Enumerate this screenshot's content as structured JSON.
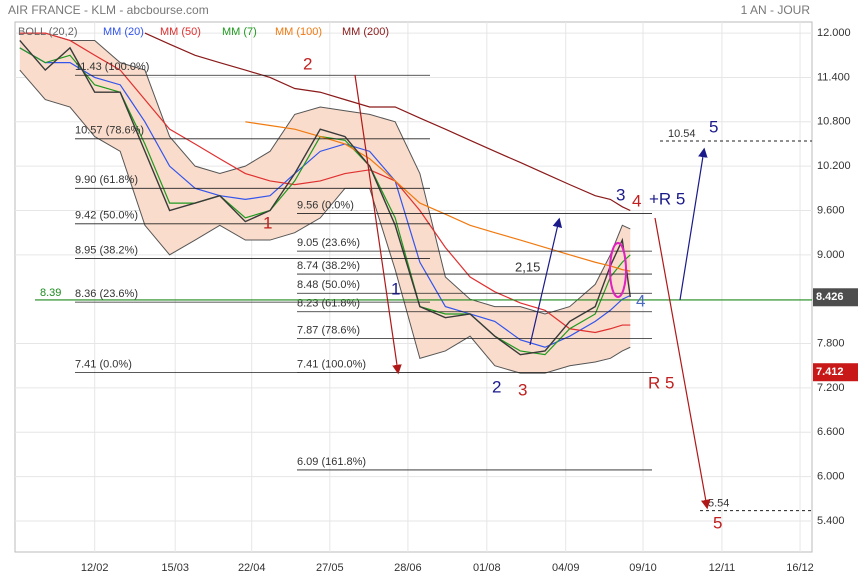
{
  "header": {
    "title": "AIR FRANCE - KLM - abcbourse.com",
    "period": "1 AN - JOUR"
  },
  "chart_data": {
    "type": "line",
    "xlim": [
      0,
      100
    ],
    "xticks": [
      {
        "value": 10.0,
        "label": "12/02"
      },
      {
        "value": 20.1,
        "label": "15/03"
      },
      {
        "value": 29.7,
        "label": "22/04"
      },
      {
        "value": 39.5,
        "label": "27/05"
      },
      {
        "value": 49.3,
        "label": "28/06"
      },
      {
        "value": 59.2,
        "label": "01/08"
      },
      {
        "value": 69.1,
        "label": "04/09"
      },
      {
        "value": 78.8,
        "label": "09/10"
      },
      {
        "value": 88.7,
        "label": "12/11"
      },
      {
        "value": 98.5,
        "label": "16/12"
      }
    ],
    "ylim": [
      4.98,
      12.15
    ],
    "yticks": [
      {
        "value": 12,
        "label": "12.000"
      },
      {
        "value": 11.4,
        "label": "11.400"
      },
      {
        "value": 10.8,
        "label": "10.800"
      },
      {
        "value": 10.2,
        "label": "10.200"
      },
      {
        "value": 9.6,
        "label": "9.600"
      },
      {
        "value": 9,
        "label": "9.000"
      },
      {
        "value": 7.8,
        "label": "7.800"
      },
      {
        "value": 7.2,
        "label": "7.200"
      },
      {
        "value": 6.6,
        "label": "6.600"
      },
      {
        "value": 6,
        "label": "6.000"
      },
      {
        "value": 5.4,
        "label": "5.400"
      }
    ],
    "grid": true,
    "x": [
      0.6,
      3.8,
      6.9,
      10.0,
      13.2,
      16.3,
      19.4,
      22.6,
      25.7,
      28.9,
      32.0,
      35.1,
      38.3,
      41.4,
      44.5,
      47.7,
      50.8,
      54.0,
      57.1,
      60.2,
      63.4,
      66.5,
      69.6,
      72.8,
      74.7,
      76.2,
      77.2
    ],
    "price": {
      "color": "#3a3a3a",
      "values": [
        11.9,
        11.5,
        11.8,
        11.2,
        11.2,
        10.4,
        9.6,
        9.7,
        9.8,
        9.45,
        9.6,
        10.1,
        10.7,
        10.6,
        10.2,
        9.4,
        8.3,
        8.15,
        8.2,
        7.9,
        7.65,
        7.7,
        8.1,
        8.3,
        8.85,
        9.2,
        8.43
      ]
    },
    "bollinger": {
      "name": "BOLL (20,2)",
      "color": "#555555",
      "fill": "#f9dccb",
      "upper": [
        12.0,
        12.0,
        11.9,
        11.9,
        11.6,
        11.5,
        10.6,
        10.2,
        10.1,
        10.2,
        10.4,
        10.9,
        11.0,
        10.95,
        10.9,
        10.8,
        10.1,
        8.7,
        8.4,
        8.3,
        8.3,
        8.2,
        8.3,
        8.6,
        9.0,
        9.4,
        9.35
      ],
      "lower": [
        11.5,
        11.1,
        11.0,
        10.6,
        10.4,
        9.4,
        9.0,
        9.2,
        9.4,
        9.2,
        9.2,
        9.3,
        9.5,
        9.9,
        9.9,
        8.8,
        7.6,
        7.7,
        7.9,
        7.5,
        7.4,
        7.4,
        7.5,
        7.55,
        7.6,
        7.7,
        7.75
      ]
    },
    "series": [
      {
        "name": "MM (20)",
        "color": "#3355ee",
        "values": [
          11.8,
          11.6,
          11.6,
          11.4,
          11.3,
          10.8,
          10.2,
          9.9,
          9.8,
          9.75,
          9.8,
          10.1,
          10.4,
          10.5,
          10.4,
          10.0,
          8.9,
          8.3,
          8.2,
          8.1,
          7.85,
          7.75,
          7.9,
          8.1,
          8.25,
          8.4,
          8.45
        ]
      },
      {
        "name": "MM (50)",
        "color": "#e03030",
        "values": [
          12.0,
          12.0,
          11.9,
          11.7,
          11.5,
          11.1,
          10.7,
          10.5,
          10.3,
          10.1,
          10.0,
          9.95,
          10.0,
          10.1,
          10.15,
          10.0,
          9.6,
          9.1,
          8.7,
          8.5,
          8.35,
          8.25,
          8.0,
          7.95,
          8.0,
          8.05,
          8.05
        ]
      },
      {
        "name": "MM (7)",
        "color": "#1f9a1f",
        "values": [
          11.8,
          11.6,
          11.7,
          11.3,
          11.2,
          10.5,
          9.7,
          9.7,
          9.8,
          9.5,
          9.6,
          10.0,
          10.6,
          10.55,
          10.2,
          9.5,
          8.3,
          8.2,
          8.2,
          7.9,
          7.7,
          7.65,
          8.0,
          8.2,
          8.7,
          8.9,
          9.0
        ]
      },
      {
        "name": "MM (100)",
        "color": "#f07a10",
        "values": [
          null,
          null,
          null,
          null,
          null,
          null,
          null,
          null,
          null,
          10.8,
          10.75,
          10.7,
          10.6,
          10.5,
          10.3,
          10.0,
          9.7,
          9.55,
          9.4,
          9.3,
          9.2,
          9.1,
          9.0,
          8.9,
          8.85,
          8.8,
          8.78
        ]
      },
      {
        "name": "MM (200)",
        "color": "#8b1a1a",
        "values": [
          null,
          null,
          null,
          null,
          null,
          12.0,
          11.85,
          11.7,
          11.6,
          11.5,
          11.4,
          11.25,
          11.2,
          11.1,
          11.0,
          11.0,
          10.85,
          10.7,
          10.55,
          10.4,
          10.25,
          10.1,
          9.95,
          9.8,
          9.75,
          9.65,
          9.6
        ]
      }
    ],
    "fib_retracements": [
      {
        "levels": [
          {
            "label": "11.43 (100.0%)",
            "value": 11.43
          },
          {
            "label": "10.57 (78.6%)",
            "value": 10.57
          },
          {
            "label": "9.90 (61.8%)",
            "value": 9.9
          },
          {
            "label": "9.42 (50.0%)",
            "value": 9.42
          },
          {
            "label": "8.95 (38.2%)",
            "value": 8.95
          },
          {
            "label": "8.36 (23.6%)",
            "value": 8.36
          },
          {
            "label": "7.41 (0.0%)",
            "value": 7.41
          }
        ]
      },
      {
        "levels": [
          {
            "label": "9.56 (0.0%)",
            "value": 9.56
          },
          {
            "label": "9.05 (23.6%)",
            "value": 9.05
          },
          {
            "label": "8.74 (38.2%)",
            "value": 8.74
          },
          {
            "label": "8.48 (50.0%)",
            "value": 8.48
          },
          {
            "label": "8.23 (61.8%)",
            "value": 8.23
          },
          {
            "label": "7.87 (78.6%)",
            "value": 7.87
          },
          {
            "label": "7.41 (100.0%)",
            "value": 7.41
          },
          {
            "label": "6.09 (161.8%)",
            "value": 6.09
          }
        ]
      }
    ],
    "targets": [
      {
        "label": "10.54",
        "value": 10.54
      },
      {
        "label": "5.54",
        "value": 5.54
      }
    ],
    "support": {
      "label": "8.39",
      "value": 8.39,
      "color": "#1e8a1e"
    },
    "last_price": {
      "label": "8.426",
      "value": 8.426
    },
    "low_marker": {
      "label": "7.412",
      "value": 7.412
    },
    "wave_labels": [
      "2",
      "1",
      "1",
      "2",
      "3",
      "3",
      "4",
      "+R 5",
      "4",
      "R 5",
      "5",
      "5",
      "2,15"
    ]
  }
}
